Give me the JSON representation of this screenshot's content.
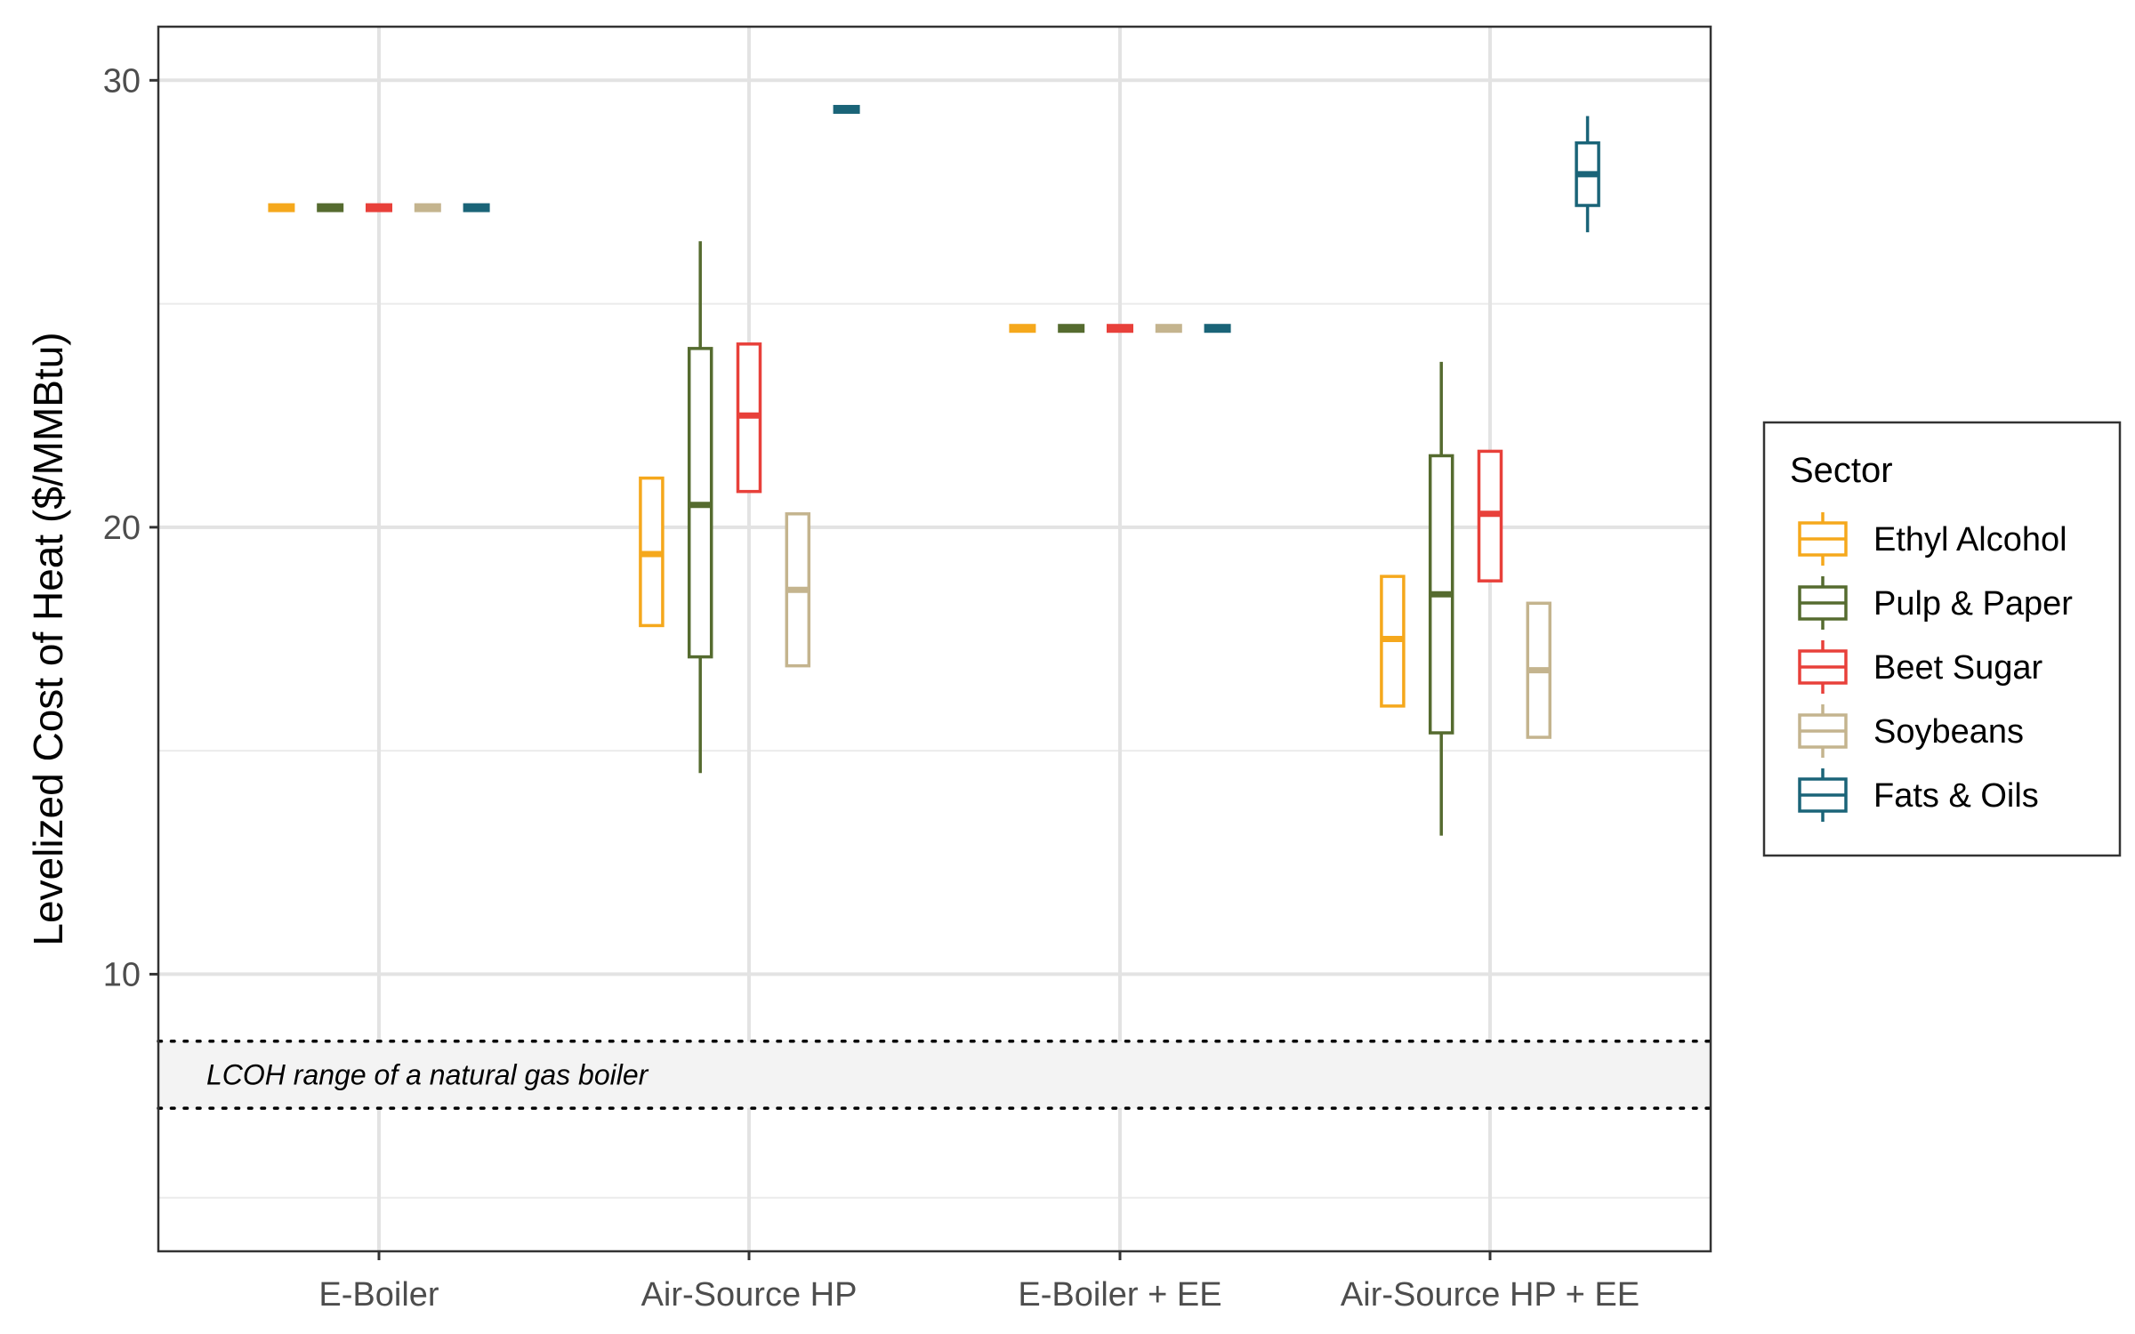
{
  "chart_data": {
    "type": "box",
    "title": "",
    "xlabel": "",
    "ylabel": "Levelized Cost of Heat ($/MMBtu)",
    "ylim": [
      3.8,
      31.2
    ],
    "yticks": [
      10,
      20,
      30
    ],
    "minor_yticks": [
      5,
      15,
      25
    ],
    "grid": true,
    "legend_position": "right",
    "legend_title": "Sector",
    "categories": [
      "E-Boiler",
      "Air-Source HP",
      "E-Boiler + EE",
      "Air-Source HP + EE"
    ],
    "series": [
      {
        "name": "Ethyl Alcohol",
        "color": "#F5A81C",
        "boxes": [
          {
            "low": 27.1,
            "q1": 27.1,
            "median": 27.1,
            "q3": 27.2,
            "high": 27.2
          },
          {
            "low": 17.8,
            "q1": 17.8,
            "median": 19.4,
            "q3": 21.1,
            "high": 21.1
          },
          {
            "low": 24.4,
            "q1": 24.4,
            "median": 24.4,
            "q3": 24.5,
            "high": 24.5
          },
          {
            "low": 16.0,
            "q1": 16.0,
            "median": 17.5,
            "q3": 18.9,
            "high": 18.9
          }
        ]
      },
      {
        "name": "Pulp & Paper",
        "color": "#556B2F",
        "boxes": [
          {
            "low": 27.1,
            "q1": 27.1,
            "median": 27.1,
            "q3": 27.2,
            "high": 27.2
          },
          {
            "low": 14.5,
            "q1": 17.1,
            "median": 20.5,
            "q3": 24.0,
            "high": 26.4
          },
          {
            "low": 24.4,
            "q1": 24.4,
            "median": 24.4,
            "q3": 24.5,
            "high": 24.5
          },
          {
            "low": 13.1,
            "q1": 15.4,
            "median": 18.5,
            "q3": 21.6,
            "high": 23.7
          }
        ]
      },
      {
        "name": "Beet Sugar",
        "color": "#E8403A",
        "boxes": [
          {
            "low": 27.1,
            "q1": 27.1,
            "median": 27.1,
            "q3": 27.2,
            "high": 27.2
          },
          {
            "low": 20.8,
            "q1": 20.8,
            "median": 22.5,
            "q3": 24.1,
            "high": 24.1
          },
          {
            "low": 24.4,
            "q1": 24.4,
            "median": 24.4,
            "q3": 24.5,
            "high": 24.5
          },
          {
            "low": 18.8,
            "q1": 18.8,
            "median": 20.3,
            "q3": 21.7,
            "high": 21.7
          }
        ]
      },
      {
        "name": "Soybeans",
        "color": "#C4B48E",
        "boxes": [
          {
            "low": 27.1,
            "q1": 27.1,
            "median": 27.1,
            "q3": 27.2,
            "high": 27.2
          },
          {
            "low": 16.9,
            "q1": 16.9,
            "median": 18.6,
            "q3": 20.3,
            "high": 20.3
          },
          {
            "low": 24.4,
            "q1": 24.4,
            "median": 24.4,
            "q3": 24.5,
            "high": 24.5
          },
          {
            "low": 15.3,
            "q1": 15.3,
            "median": 16.8,
            "q3": 18.3,
            "high": 18.3
          }
        ]
      },
      {
        "name": "Fats & Oils",
        "color": "#1A6478",
        "boxes": [
          {
            "low": 27.1,
            "q1": 27.1,
            "median": 27.1,
            "q3": 27.2,
            "high": 27.2
          },
          {
            "low": 29.3,
            "q1": 29.3,
            "median": 29.4,
            "q3": 29.4,
            "high": 29.4
          },
          {
            "low": 24.4,
            "q1": 24.4,
            "median": 24.4,
            "q3": 24.5,
            "high": 24.5
          },
          {
            "low": 26.6,
            "q1": 27.2,
            "median": 27.9,
            "q3": 28.6,
            "high": 29.2
          }
        ]
      }
    ],
    "reference_band": {
      "low": 7.0,
      "high": 8.5,
      "label": "LCOH range of a natural gas boiler"
    }
  }
}
